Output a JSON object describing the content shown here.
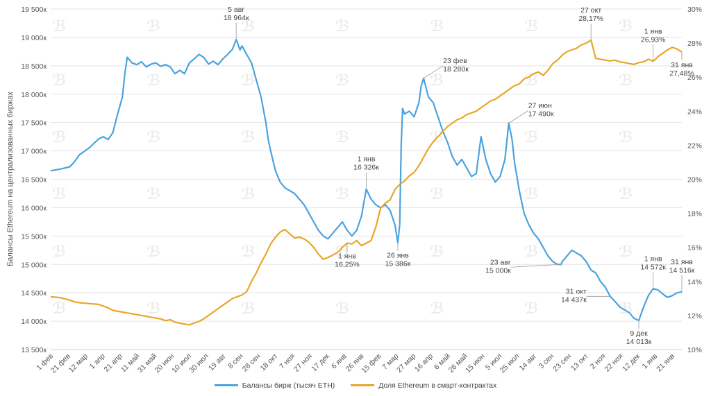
{
  "colors": {
    "balances": "#4aa3df",
    "share": "#e8a628",
    "grid": "#e3e3e3"
  },
  "chart_data": {
    "type": "line",
    "title": "",
    "ylabel": "Балансы Ethereum на централизованных биржах",
    "ylim": [
      13500,
      19500
    ],
    "y2lim": [
      10,
      30
    ],
    "y_ticks": [
      "13 500к",
      "14 000к",
      "14 500к",
      "15 000к",
      "15 500к",
      "16 000к",
      "16 500к",
      "17 000к",
      "17 500к",
      "18 000к",
      "18 500к",
      "19 000к",
      "19 500к"
    ],
    "y2_ticks": [
      "10%",
      "12%",
      "14%",
      "16%",
      "18%",
      "20%",
      "22%",
      "24%",
      "26%",
      "28%",
      "30%"
    ],
    "x_ticks": [
      "1 фев",
      "21 фев",
      "12 мар",
      "1 апр",
      "21 апр",
      "11 май",
      "31 май",
      "20 июн",
      "10 июл",
      "30 июл",
      "19 авг",
      "8 сен",
      "28 сен",
      "18 окт",
      "7 ноя",
      "27 ноя",
      "17 дек",
      "6 янв",
      "26 янв",
      "15 фев",
      "7 мар",
      "27 мар",
      "16 апр",
      "6 май",
      "26 май",
      "15 июн",
      "5 июл",
      "25 июл",
      "14 авг",
      "3 сен",
      "23 сен",
      "13 окт",
      "2 ноя",
      "22 ноя",
      "12 дек",
      "1 янв",
      "21 янв"
    ],
    "series": [
      {
        "name": "Балансы бирж (тысяч ETH)",
        "axis": "left",
        "points": [
          [
            0,
            16650
          ],
          [
            2,
            16680
          ],
          [
            4,
            16720
          ],
          [
            5,
            16810
          ],
          [
            6,
            16930
          ],
          [
            8,
            17050
          ],
          [
            10,
            17210
          ],
          [
            11,
            17250
          ],
          [
            12,
            17200
          ],
          [
            13,
            17320
          ],
          [
            14,
            17650
          ],
          [
            15,
            17950
          ],
          [
            15.5,
            18350
          ],
          [
            16,
            18650
          ],
          [
            17,
            18550
          ],
          [
            18,
            18520
          ],
          [
            19,
            18570
          ],
          [
            20,
            18480
          ],
          [
            21,
            18530
          ],
          [
            22,
            18550
          ],
          [
            23,
            18490
          ],
          [
            24,
            18520
          ],
          [
            25,
            18480
          ],
          [
            26,
            18360
          ],
          [
            27,
            18420
          ],
          [
            28,
            18360
          ],
          [
            29,
            18550
          ],
          [
            30,
            18620
          ],
          [
            31,
            18700
          ],
          [
            32,
            18650
          ],
          [
            33,
            18530
          ],
          [
            34,
            18580
          ],
          [
            35,
            18520
          ],
          [
            36,
            18620
          ],
          [
            37,
            18700
          ],
          [
            38,
            18790
          ],
          [
            38.8,
            18964
          ],
          [
            39.6,
            18780
          ],
          [
            40,
            18850
          ],
          [
            41,
            18700
          ],
          [
            42,
            18550
          ],
          [
            43,
            18250
          ],
          [
            44,
            17950
          ],
          [
            45,
            17500
          ],
          [
            45.5,
            17200
          ],
          [
            46,
            17000
          ],
          [
            47,
            16650
          ],
          [
            48,
            16450
          ],
          [
            49,
            16350
          ],
          [
            50,
            16300
          ],
          [
            51,
            16250
          ],
          [
            52,
            16150
          ],
          [
            53,
            16050
          ],
          [
            54,
            15900
          ],
          [
            55,
            15750
          ],
          [
            56,
            15600
          ],
          [
            57,
            15500
          ],
          [
            58,
            15450
          ],
          [
            59,
            15550
          ],
          [
            60,
            15650
          ],
          [
            61,
            15750
          ],
          [
            62,
            15600
          ],
          [
            63,
            15500
          ],
          [
            64,
            15600
          ],
          [
            65,
            15850
          ],
          [
            66,
            16326
          ],
          [
            67,
            16150
          ],
          [
            68,
            16050
          ],
          [
            69,
            16000
          ],
          [
            70,
            16050
          ],
          [
            71,
            15950
          ],
          [
            72,
            15700
          ],
          [
            72.6,
            15386
          ],
          [
            73,
            15700
          ],
          [
            73.3,
            17100
          ],
          [
            73.6,
            17750
          ],
          [
            74,
            17650
          ],
          [
            75,
            17700
          ],
          [
            76,
            17600
          ],
          [
            77,
            17850
          ],
          [
            77.5,
            18150
          ],
          [
            78,
            18280
          ],
          [
            79,
            17950
          ],
          [
            80,
            17850
          ],
          [
            81,
            17600
          ],
          [
            82,
            17350
          ],
          [
            83,
            17150
          ],
          [
            84,
            16900
          ],
          [
            85,
            16750
          ],
          [
            86,
            16850
          ],
          [
            87,
            16700
          ],
          [
            88,
            16550
          ],
          [
            89,
            16600
          ],
          [
            90,
            17250
          ],
          [
            91,
            16850
          ],
          [
            92,
            16600
          ],
          [
            93,
            16450
          ],
          [
            94,
            16550
          ],
          [
            95,
            16850
          ],
          [
            95.8,
            17490
          ],
          [
            96.5,
            17200
          ],
          [
            97,
            16800
          ],
          [
            98,
            16300
          ],
          [
            99,
            15900
          ],
          [
            100,
            15700
          ],
          [
            101,
            15550
          ],
          [
            102,
            15450
          ],
          [
            103,
            15300
          ],
          [
            104,
            15150
          ],
          [
            105,
            15050
          ],
          [
            106,
            15000
          ],
          [
            106.7,
            15000
          ],
          [
            107,
            15050
          ],
          [
            108,
            15150
          ],
          [
            109,
            15250
          ],
          [
            110,
            15200
          ],
          [
            111,
            15150
          ],
          [
            112,
            15050
          ],
          [
            113,
            14900
          ],
          [
            114,
            14850
          ],
          [
            115,
            14700
          ],
          [
            116,
            14600
          ],
          [
            117,
            14437
          ],
          [
            118,
            14350
          ],
          [
            119,
            14250
          ],
          [
            120,
            14200
          ],
          [
            121,
            14150
          ],
          [
            122,
            14050
          ],
          [
            123,
            14013
          ],
          [
            124,
            14250
          ],
          [
            125,
            14450
          ],
          [
            126,
            14572
          ],
          [
            127,
            14550
          ],
          [
            128,
            14480
          ],
          [
            129,
            14420
          ],
          [
            130,
            14450
          ],
          [
            131,
            14500
          ],
          [
            132,
            14516
          ]
        ]
      },
      {
        "name": "Доля Ethereum в смарт-контрактах",
        "axis": "right",
        "points": [
          [
            0,
            13.1
          ],
          [
            2,
            13.05
          ],
          [
            4,
            12.9
          ],
          [
            5,
            12.8
          ],
          [
            6,
            12.75
          ],
          [
            8,
            12.7
          ],
          [
            10,
            12.65
          ],
          [
            11,
            12.55
          ],
          [
            12,
            12.45
          ],
          [
            13,
            12.3
          ],
          [
            14,
            12.25
          ],
          [
            15,
            12.2
          ],
          [
            16,
            12.15
          ],
          [
            17,
            12.1
          ],
          [
            18,
            12.05
          ],
          [
            19,
            12.0
          ],
          [
            20,
            11.95
          ],
          [
            21,
            11.9
          ],
          [
            22,
            11.85
          ],
          [
            23,
            11.8
          ],
          [
            24,
            11.7
          ],
          [
            25,
            11.75
          ],
          [
            26,
            11.6
          ],
          [
            27,
            11.55
          ],
          [
            28,
            11.5
          ],
          [
            29,
            11.45
          ],
          [
            30,
            11.55
          ],
          [
            31,
            11.65
          ],
          [
            32,
            11.8
          ],
          [
            33,
            12.0
          ],
          [
            34,
            12.2
          ],
          [
            35,
            12.4
          ],
          [
            36,
            12.6
          ],
          [
            37,
            12.8
          ],
          [
            38,
            13.0
          ],
          [
            39,
            13.1
          ],
          [
            40,
            13.2
          ],
          [
            41,
            13.4
          ],
          [
            42,
            14.0
          ],
          [
            43,
            14.5
          ],
          [
            44,
            15.1
          ],
          [
            45,
            15.6
          ],
          [
            46,
            16.2
          ],
          [
            47,
            16.6
          ],
          [
            48,
            16.9
          ],
          [
            49,
            17.05
          ],
          [
            50,
            16.8
          ],
          [
            51,
            16.55
          ],
          [
            52,
            16.6
          ],
          [
            53,
            16.5
          ],
          [
            54,
            16.3
          ],
          [
            55,
            16.0
          ],
          [
            56,
            15.6
          ],
          [
            57,
            15.3
          ],
          [
            58,
            15.4
          ],
          [
            59,
            15.55
          ],
          [
            60,
            15.7
          ],
          [
            61,
            16.0
          ],
          [
            62,
            16.25
          ],
          [
            63,
            16.2
          ],
          [
            64,
            16.4
          ],
          [
            65,
            16.1
          ],
          [
            66,
            16.25
          ],
          [
            67,
            16.4
          ],
          [
            68,
            17.2
          ],
          [
            69,
            18.3
          ],
          [
            70,
            18.6
          ],
          [
            71,
            18.8
          ],
          [
            72,
            19.4
          ],
          [
            73,
            19.7
          ],
          [
            74,
            19.9
          ],
          [
            75,
            20.2
          ],
          [
            76,
            20.4
          ],
          [
            77,
            20.8
          ],
          [
            78,
            21.3
          ],
          [
            79,
            21.8
          ],
          [
            80,
            22.2
          ],
          [
            81,
            22.5
          ],
          [
            82,
            22.8
          ],
          [
            83,
            23.1
          ],
          [
            84,
            23.3
          ],
          [
            85,
            23.5
          ],
          [
            86,
            23.6
          ],
          [
            87,
            23.8
          ],
          [
            88,
            23.9
          ],
          [
            89,
            24.0
          ],
          [
            90,
            24.2
          ],
          [
            91,
            24.4
          ],
          [
            92,
            24.6
          ],
          [
            93,
            24.7
          ],
          [
            94,
            24.9
          ],
          [
            95,
            25.1
          ],
          [
            96,
            25.3
          ],
          [
            97,
            25.5
          ],
          [
            98,
            25.6
          ],
          [
            99,
            25.9
          ],
          [
            100,
            26.0
          ],
          [
            101,
            26.2
          ],
          [
            102,
            26.3
          ],
          [
            103,
            26.1
          ],
          [
            104,
            26.4
          ],
          [
            105,
            26.8
          ],
          [
            106,
            27.0
          ],
          [
            107,
            27.3
          ],
          [
            108,
            27.5
          ],
          [
            109,
            27.6
          ],
          [
            110,
            27.7
          ],
          [
            111,
            27.9
          ],
          [
            112,
            28.0
          ],
          [
            113,
            28.17
          ],
          [
            114,
            27.1
          ],
          [
            115,
            27.05
          ],
          [
            116,
            27.0
          ],
          [
            117,
            26.95
          ],
          [
            118,
            27.0
          ],
          [
            119,
            26.9
          ],
          [
            120,
            26.85
          ],
          [
            121,
            26.8
          ],
          [
            122,
            26.75
          ],
          [
            123,
            26.85
          ],
          [
            124,
            26.9
          ],
          [
            125,
            27.05
          ],
          [
            126,
            26.93
          ],
          [
            127,
            27.2
          ],
          [
            128,
            27.4
          ],
          [
            129,
            27.6
          ],
          [
            130,
            27.75
          ],
          [
            131,
            27.65
          ],
          [
            132,
            27.48
          ]
        ]
      }
    ],
    "annotations": [
      {
        "lines": [
          "5 авг",
          "18 964к"
        ],
        "series": 0,
        "x": 38.8,
        "y": 18964,
        "pos": "above"
      },
      {
        "lines": [
          "1 янв",
          "16 326к"
        ],
        "series": 0,
        "x": 66,
        "y": 16326,
        "pos": "above"
      },
      {
        "lines": [
          "23 фев",
          "18 280к"
        ],
        "series": 0,
        "x": 78,
        "y": 18280,
        "pos": "right"
      },
      {
        "lines": [
          "26 янв",
          "15 386к"
        ],
        "series": 0,
        "x": 72.6,
        "y": 15386,
        "pos": "below"
      },
      {
        "lines": [
          "27 июн",
          "17 490к"
        ],
        "series": 0,
        "x": 95.8,
        "y": 17490,
        "pos": "right"
      },
      {
        "lines": [
          "23 авг",
          "15 000к"
        ],
        "series": 0,
        "x": 106.7,
        "y": 15000,
        "pos": "below-left"
      },
      {
        "lines": [
          "31 окт",
          "14 437к"
        ],
        "series": 0,
        "x": 117,
        "y": 14437,
        "pos": "left"
      },
      {
        "lines": [
          "9 дек",
          "14 013к"
        ],
        "series": 0,
        "x": 123,
        "y": 14013,
        "pos": "below"
      },
      {
        "lines": [
          "1 янв",
          "14 572к"
        ],
        "series": 0,
        "x": 126,
        "y": 14572,
        "pos": "above"
      },
      {
        "lines": [
          "31 янв",
          "14 516к"
        ],
        "series": 0,
        "x": 132,
        "y": 14516,
        "pos": "above"
      },
      {
        "lines": [
          "27 окт",
          "28,17%"
        ],
        "series": 1,
        "x": 113,
        "y": 28.17,
        "pos": "above"
      },
      {
        "lines": [
          "1 янв",
          "26,93%"
        ],
        "series": 1,
        "x": 126,
        "y": 26.93,
        "pos": "above"
      },
      {
        "lines": [
          "31 янв",
          "27,48%"
        ],
        "series": 1,
        "x": 132,
        "y": 27.48,
        "pos": "below"
      },
      {
        "lines": [
          "1 янв",
          "16,25%"
        ],
        "series": 1,
        "x": 62,
        "y": 16.25,
        "pos": "below"
      }
    ]
  },
  "legend": [
    {
      "label": "Балансы бирж (тысяч ETH)"
    },
    {
      "label": "Доля Ethereum в смарт-контрактах"
    }
  ]
}
